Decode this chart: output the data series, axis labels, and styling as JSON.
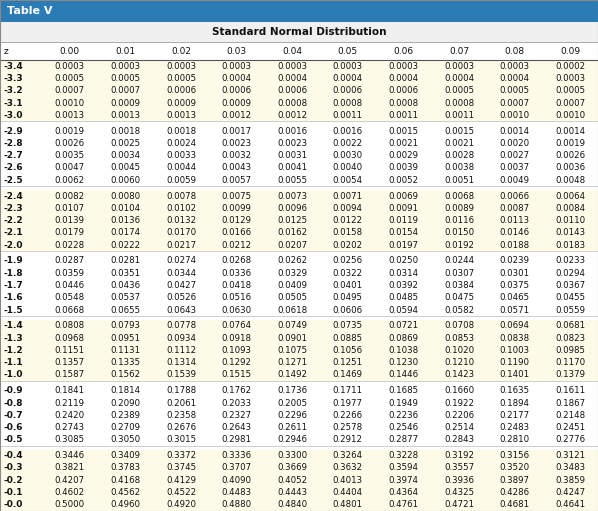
{
  "title": "Table V",
  "subtitle": "Standard Normal Distribution",
  "header": [
    "z",
    "0.00",
    "0.01",
    "0.02",
    "0.03",
    "0.04",
    "0.05",
    "0.06",
    "0.07",
    "0.08",
    "0.09"
  ],
  "rows": [
    [
      "-3.4",
      "0.0003",
      "0.0003",
      "0.0003",
      "0.0003",
      "0.0003",
      "0.0003",
      "0.0003",
      "0.0003",
      "0.0003",
      "0.0002"
    ],
    [
      "-3.3",
      "0.0005",
      "0.0005",
      "0.0005",
      "0.0004",
      "0.0004",
      "0.0004",
      "0.0004",
      "0.0004",
      "0.0004",
      "0.0003"
    ],
    [
      "-3.2",
      "0.0007",
      "0.0007",
      "0.0006",
      "0.0006",
      "0.0006",
      "0.0006",
      "0.0006",
      "0.0005",
      "0.0005",
      "0.0005"
    ],
    [
      "-3.1",
      "0.0010",
      "0.0009",
      "0.0009",
      "0.0009",
      "0.0008",
      "0.0008",
      "0.0008",
      "0.0008",
      "0.0007",
      "0.0007"
    ],
    [
      "-3.0",
      "0.0013",
      "0.0013",
      "0.0013",
      "0.0012",
      "0.0012",
      "0.0011",
      "0.0011",
      "0.0011",
      "0.0010",
      "0.0010"
    ],
    [
      "-2.9",
      "0.0019",
      "0.0018",
      "0.0018",
      "0.0017",
      "0.0016",
      "0.0016",
      "0.0015",
      "0.0015",
      "0.0014",
      "0.0014"
    ],
    [
      "-2.8",
      "0.0026",
      "0.0025",
      "0.0024",
      "0.0023",
      "0.0023",
      "0.0022",
      "0.0021",
      "0.0021",
      "0.0020",
      "0.0019"
    ],
    [
      "-2.7",
      "0.0035",
      "0.0034",
      "0.0033",
      "0.0032",
      "0.0031",
      "0.0030",
      "0.0029",
      "0.0028",
      "0.0027",
      "0.0026"
    ],
    [
      "-2.6",
      "0.0047",
      "0.0045",
      "0.0044",
      "0.0043",
      "0.0041",
      "0.0040",
      "0.0039",
      "0.0038",
      "0.0037",
      "0.0036"
    ],
    [
      "-2.5",
      "0.0062",
      "0.0060",
      "0.0059",
      "0.0057",
      "0.0055",
      "0.0054",
      "0.0052",
      "0.0051",
      "0.0049",
      "0.0048"
    ],
    [
      "-2.4",
      "0.0082",
      "0.0080",
      "0.0078",
      "0.0075",
      "0.0073",
      "0.0071",
      "0.0069",
      "0.0068",
      "0.0066",
      "0.0064"
    ],
    [
      "-2.3",
      "0.0107",
      "0.0104",
      "0.0102",
      "0.0099",
      "0.0096",
      "0.0094",
      "0.0091",
      "0.0089",
      "0.0087",
      "0.0084"
    ],
    [
      "-2.2",
      "0.0139",
      "0.0136",
      "0.0132",
      "0.0129",
      "0.0125",
      "0.0122",
      "0.0119",
      "0.0116",
      "0.0113",
      "0.0110"
    ],
    [
      "-2.1",
      "0.0179",
      "0.0174",
      "0.0170",
      "0.0166",
      "0.0162",
      "0.0158",
      "0.0154",
      "0.0150",
      "0.0146",
      "0.0143"
    ],
    [
      "-2.0",
      "0.0228",
      "0.0222",
      "0.0217",
      "0.0212",
      "0.0207",
      "0.0202",
      "0.0197",
      "0.0192",
      "0.0188",
      "0.0183"
    ],
    [
      "-1.9",
      "0.0287",
      "0.0281",
      "0.0274",
      "0.0268",
      "0.0262",
      "0.0256",
      "0.0250",
      "0.0244",
      "0.0239",
      "0.0233"
    ],
    [
      "-1.8",
      "0.0359",
      "0.0351",
      "0.0344",
      "0.0336",
      "0.0329",
      "0.0322",
      "0.0314",
      "0.0307",
      "0.0301",
      "0.0294"
    ],
    [
      "-1.7",
      "0.0446",
      "0.0436",
      "0.0427",
      "0.0418",
      "0.0409",
      "0.0401",
      "0.0392",
      "0.0384",
      "0.0375",
      "0.0367"
    ],
    [
      "-1.6",
      "0.0548",
      "0.0537",
      "0.0526",
      "0.0516",
      "0.0505",
      "0.0495",
      "0.0485",
      "0.0475",
      "0.0465",
      "0.0455"
    ],
    [
      "-1.5",
      "0.0668",
      "0.0655",
      "0.0643",
      "0.0630",
      "0.0618",
      "0.0606",
      "0.0594",
      "0.0582",
      "0.0571",
      "0.0559"
    ],
    [
      "-1.4",
      "0.0808",
      "0.0793",
      "0.0778",
      "0.0764",
      "0.0749",
      "0.0735",
      "0.0721",
      "0.0708",
      "0.0694",
      "0.0681"
    ],
    [
      "-1.3",
      "0.0968",
      "0.0951",
      "0.0934",
      "0.0918",
      "0.0901",
      "0.0885",
      "0.0869",
      "0.0853",
      "0.0838",
      "0.0823"
    ],
    [
      "-1.2",
      "0.1151",
      "0.1131",
      "0.1112",
      "0.1093",
      "0.1075",
      "0.1056",
      "0.1038",
      "0.1020",
      "0.1003",
      "0.0985"
    ],
    [
      "-1.1",
      "0.1357",
      "0.1335",
      "0.1314",
      "0.1292",
      "0.1271",
      "0.1251",
      "0.1230",
      "0.1210",
      "0.1190",
      "0.1170"
    ],
    [
      "-1.0",
      "0.1587",
      "0.1562",
      "0.1539",
      "0.1515",
      "0.1492",
      "0.1469",
      "0.1446",
      "0.1423",
      "0.1401",
      "0.1379"
    ],
    [
      "-0.9",
      "0.1841",
      "0.1814",
      "0.1788",
      "0.1762",
      "0.1736",
      "0.1711",
      "0.1685",
      "0.1660",
      "0.1635",
      "0.1611"
    ],
    [
      "-0.8",
      "0.2119",
      "0.2090",
      "0.2061",
      "0.2033",
      "0.2005",
      "0.1977",
      "0.1949",
      "0.1922",
      "0.1894",
      "0.1867"
    ],
    [
      "-0.7",
      "0.2420",
      "0.2389",
      "0.2358",
      "0.2327",
      "0.2296",
      "0.2266",
      "0.2236",
      "0.2206",
      "0.2177",
      "0.2148"
    ],
    [
      "-0.6",
      "0.2743",
      "0.2709",
      "0.2676",
      "0.2643",
      "0.2611",
      "0.2578",
      "0.2546",
      "0.2514",
      "0.2483",
      "0.2451"
    ],
    [
      "-0.5",
      "0.3085",
      "0.3050",
      "0.3015",
      "0.2981",
      "0.2946",
      "0.2912",
      "0.2877",
      "0.2843",
      "0.2810",
      "0.2776"
    ],
    [
      "-0.4",
      "0.3446",
      "0.3409",
      "0.3372",
      "0.3336",
      "0.3300",
      "0.3264",
      "0.3228",
      "0.3192",
      "0.3156",
      "0.3121"
    ],
    [
      "-0.3",
      "0.3821",
      "0.3783",
      "0.3745",
      "0.3707",
      "0.3669",
      "0.3632",
      "0.3594",
      "0.3557",
      "0.3520",
      "0.3483"
    ],
    [
      "-0.2",
      "0.4207",
      "0.4168",
      "0.4129",
      "0.4090",
      "0.4052",
      "0.4013",
      "0.3974",
      "0.3936",
      "0.3897",
      "0.3859"
    ],
    [
      "-0.1",
      "0.4602",
      "0.4562",
      "0.4522",
      "0.4483",
      "0.4443",
      "0.4404",
      "0.4364",
      "0.4325",
      "0.4286",
      "0.4247"
    ],
    [
      "-0.0",
      "0.5000",
      "0.4960",
      "0.4920",
      "0.4880",
      "0.4840",
      "0.4801",
      "0.4761",
      "0.4721",
      "0.4681",
      "0.4641"
    ]
  ],
  "group_separators_after": [
    4,
    9,
    14,
    19,
    24,
    29
  ],
  "title_bg": "#2B7CB5",
  "title_text_color": "#FFFFFF",
  "row_bg_cream": "#FDFBE8",
  "row_bg_white": "#FFFFFF",
  "separator_line_color": "#AAAAAA",
  "header_line_color": "#555555",
  "text_color": "#111111"
}
